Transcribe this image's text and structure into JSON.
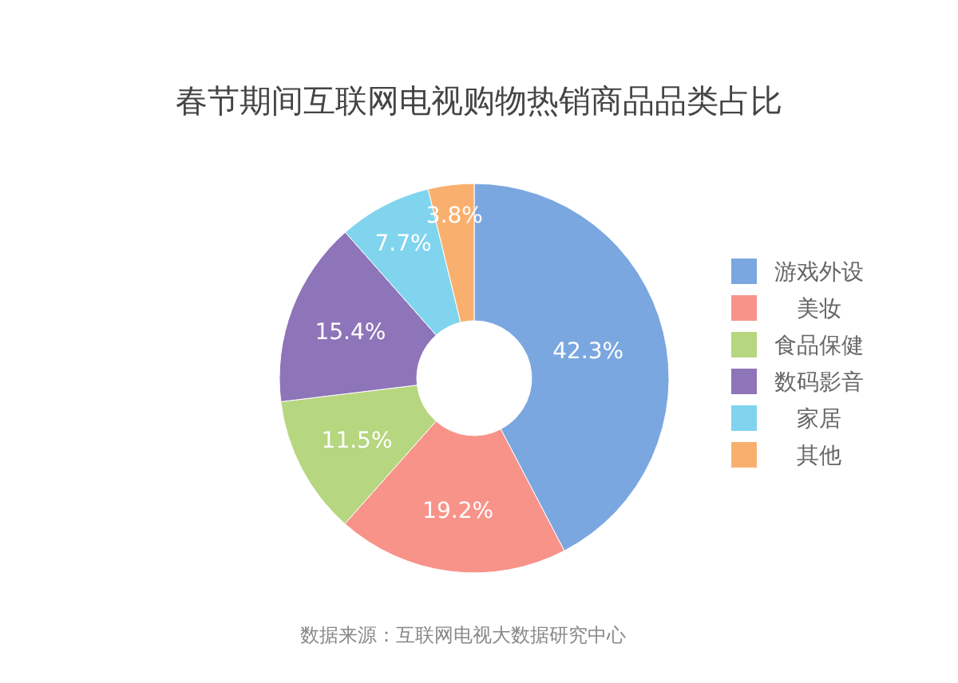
{
  "chart_data": {
    "type": "donut",
    "title": "春节期间互联网电视购物热销商品品类占比",
    "categories": [
      "游戏外设",
      "美妆",
      "食品保健",
      "数码影音",
      "家居",
      "其他"
    ],
    "values": [
      42.3,
      19.2,
      11.5,
      15.4,
      7.7,
      3.8
    ],
    "colors": [
      "#7ba7e0",
      "#f8938a",
      "#b6d67f",
      "#8e74b8",
      "#80d4ee",
      "#f9b06e"
    ],
    "value_labels": [
      "42.3%",
      "19.2%",
      "11.5%",
      "15.4%",
      "7.7%",
      "3.8%"
    ],
    "legend": "right",
    "annotations": [
      "数据来源：互联网电视大数据研究中心"
    ]
  }
}
